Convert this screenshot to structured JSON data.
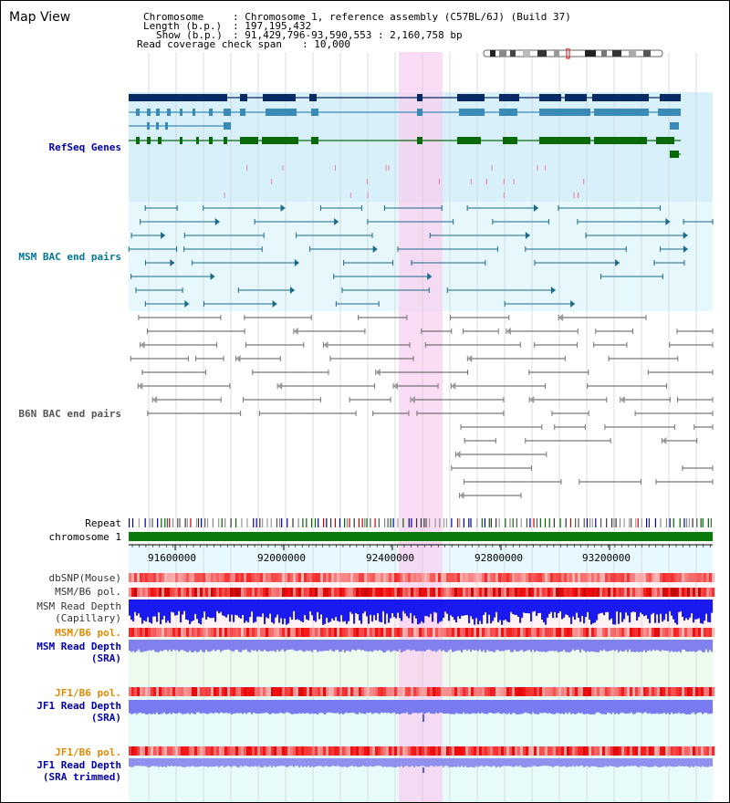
{
  "window": {
    "title": "Map View"
  },
  "info": {
    "chromosome_key": "Chromosome",
    "chromosome_val": ": Chromosome 1, reference assembly (C57BL/6J) (Build 37)",
    "length_key": "Length (b.p.)",
    "length_val": ": 197,195,432",
    "show_key": "Show (b.p.)",
    "show_val": ": 91,429,796-93,590,553 : 2,160,758 bp",
    "span_key": "Read coverage check span",
    "span_val": ": 10,000"
  },
  "tracks": {
    "refseq": "RefSeq Genes",
    "msm_bac": "MSM BAC end pairs",
    "b6n_bac": "B6N BAC end pairs",
    "repeat": "Repeat",
    "chromosome": "chromosome 1",
    "dbsnp": "dbSNP(Mouse)",
    "msm_b6_pol": "MSM/B6 pol.",
    "msm_depth_cap_1": "MSM Read Depth",
    "msm_depth_cap_2": "(Capillary)",
    "msm_b6_pol2": "MSM/B6 pol.",
    "msm_depth_sra_1": "MSM Read Depth",
    "msm_depth_sra_2": "(SRA)",
    "jf1_pol": "JF1/B6 pol.",
    "jf1_depth_1": "JF1 Read Depth",
    "jf1_depth_2": "(SRA)",
    "jf1_pol2": "JF1/B6 pol.",
    "jf1_trim_1": "JF1 Read Depth",
    "jf1_trim_2": "(SRA trimmed)"
  },
  "axis": {
    "ticks": [
      "91600000",
      "92000000",
      "92400000",
      "92800000",
      "93200000"
    ]
  },
  "colors": {
    "refseq_dark": "#0a2a66",
    "refseq_mid": "#3a8ab8",
    "refseq_green": "#0a6a0a",
    "msm_bac": "#1a6a88",
    "b6n_bac": "#555555",
    "highlight": "#f8d0f0",
    "label_blue": "#0000aa",
    "label_orange": "#e08800",
    "label_teal": "#007799"
  }
}
